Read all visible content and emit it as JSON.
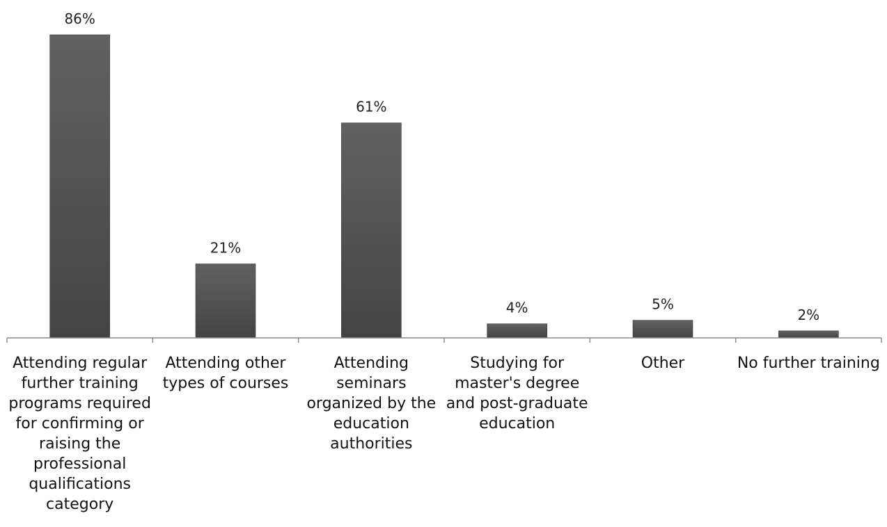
{
  "chart_data": {
    "type": "bar",
    "title": "",
    "xlabel": "",
    "ylabel": "",
    "ylim": [
      0,
      86
    ],
    "grid": false,
    "legend": "none",
    "bar_color": "#555555",
    "categories": [
      "Attending regular further training programs required for confirming or raising the professional qualifications category",
      "Attending other types of courses",
      "Attending seminars organized by the education authorities",
      "Studying for master's degree and post-graduate education",
      "Other",
      "No further training"
    ],
    "values": [
      86,
      21,
      61,
      4,
      5,
      2
    ],
    "data_labels": [
      "86%",
      "21%",
      "61%",
      "4%",
      "5%",
      "2%"
    ]
  }
}
